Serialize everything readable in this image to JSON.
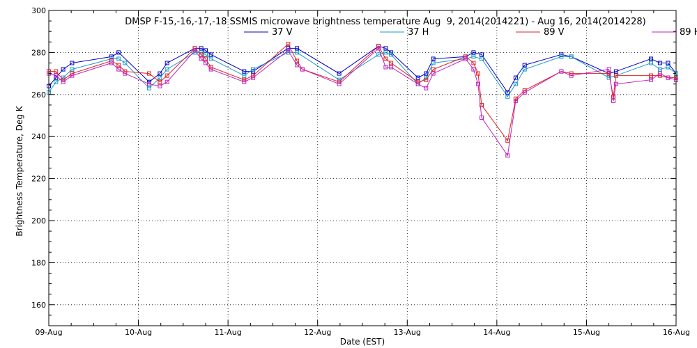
{
  "chart_data": {
    "type": "line",
    "title": "DMSP F-15,-16,-17,-18 SSMIS microwave brightness temperature Aug  9, 2014(2014221) - Aug 16, 2014(2014228)",
    "xlabel": "Date (EST)",
    "ylabel": "Brightness Temperature, Deg K",
    "xlim": [
      9.0,
      16.0
    ],
    "ylim": [
      150,
      300
    ],
    "x_ticks": [
      "09-Aug",
      "10-Aug",
      "11-Aug",
      "12-Aug",
      "13-Aug",
      "14-Aug",
      "15-Aug",
      "16-Aug"
    ],
    "y_ticks": [
      160,
      180,
      200,
      220,
      240,
      260,
      280,
      300
    ],
    "grid": true,
    "legend_position": "top-center",
    "series": [
      {
        "name": "37 V",
        "color": "#0000c8",
        "x": [
          9.0,
          9.08,
          9.16,
          9.26,
          9.7,
          9.78,
          10.12,
          10.24,
          10.32,
          10.63,
          10.7,
          10.75,
          10.81,
          11.18,
          11.28,
          11.67,
          11.77,
          12.24,
          12.68,
          12.76,
          12.82,
          13.12,
          13.21,
          13.29,
          13.65,
          13.74,
          13.83,
          14.12,
          14.21,
          14.31,
          14.72,
          14.83,
          15.25,
          15.33,
          15.72,
          15.82,
          15.91,
          16.0
        ],
        "y": [
          264,
          268,
          272,
          275,
          278,
          280,
          266,
          270,
          275,
          282,
          282,
          281,
          279,
          271,
          271,
          282,
          282,
          270,
          283,
          282,
          280,
          268,
          270,
          277,
          278,
          280,
          279,
          261,
          268,
          274,
          279,
          278,
          270,
          271,
          277,
          275,
          275,
          270
        ]
      },
      {
        "name": "37 H",
        "color": "#1e9ac8",
        "x": [
          9.0,
          9.08,
          9.16,
          9.26,
          9.7,
          9.78,
          9.85,
          10.12,
          10.24,
          10.32,
          10.63,
          10.7,
          10.75,
          10.81,
          11.18,
          11.28,
          11.67,
          11.77,
          12.24,
          12.68,
          12.76,
          12.82,
          13.12,
          13.21,
          13.29,
          13.65,
          13.74,
          13.83,
          14.12,
          14.21,
          14.31,
          14.72,
          14.83,
          15.25,
          15.33,
          15.72,
          15.82,
          15.91,
          16.0
        ],
        "y": [
          261,
          266,
          268,
          272,
          277,
          277,
          275,
          263,
          268,
          272,
          280,
          280,
          279,
          277,
          269,
          272,
          280,
          280,
          267,
          279,
          280,
          279,
          265,
          268,
          275,
          277,
          278,
          277,
          259,
          265,
          272,
          278,
          278,
          268,
          269,
          275,
          272,
          273,
          270
        ]
      },
      {
        "name": "89 V",
        "color": "#e02020",
        "x": [
          9.0,
          9.08,
          9.16,
          9.26,
          9.7,
          9.78,
          9.85,
          10.12,
          10.24,
          10.32,
          10.63,
          10.7,
          10.75,
          10.81,
          11.18,
          11.28,
          11.67,
          11.77,
          11.83,
          12.24,
          12.68,
          12.76,
          12.82,
          13.12,
          13.21,
          13.29,
          13.65,
          13.74,
          13.79,
          13.83,
          14.12,
          14.21,
          14.31,
          14.72,
          14.83,
          15.25,
          15.3,
          15.33,
          15.72,
          15.82,
          15.91,
          16.0
        ],
        "y": [
          271,
          271,
          267,
          270,
          276,
          274,
          271,
          270,
          266,
          269,
          282,
          279,
          277,
          273,
          267,
          269,
          284,
          276,
          272,
          266,
          283,
          277,
          275,
          266,
          267,
          272,
          278,
          275,
          270,
          255,
          238,
          258,
          262,
          271,
          270,
          270,
          259,
          269,
          269,
          269,
          268,
          268
        ]
      },
      {
        "name": "89 H",
        "color": "#c020c0",
        "x": [
          9.0,
          9.08,
          9.16,
          9.26,
          9.7,
          9.78,
          9.85,
          10.12,
          10.24,
          10.32,
          10.63,
          10.7,
          10.75,
          10.81,
          11.18,
          11.28,
          11.67,
          11.77,
          11.83,
          12.24,
          12.68,
          12.76,
          12.82,
          13.12,
          13.21,
          13.29,
          13.65,
          13.74,
          13.79,
          13.83,
          14.12,
          14.21,
          14.31,
          14.72,
          14.83,
          15.25,
          15.3,
          15.33,
          15.72,
          15.82,
          15.91,
          16.0
        ],
        "y": [
          270,
          269,
          266,
          269,
          275,
          272,
          270,
          265,
          264,
          266,
          281,
          277,
          275,
          272,
          266,
          268,
          281,
          274,
          272,
          265,
          282,
          273,
          273,
          265,
          263,
          270,
          277,
          272,
          265,
          249,
          231,
          257,
          261,
          271,
          269,
          272,
          257,
          265,
          267,
          270,
          268,
          267
        ]
      }
    ]
  }
}
